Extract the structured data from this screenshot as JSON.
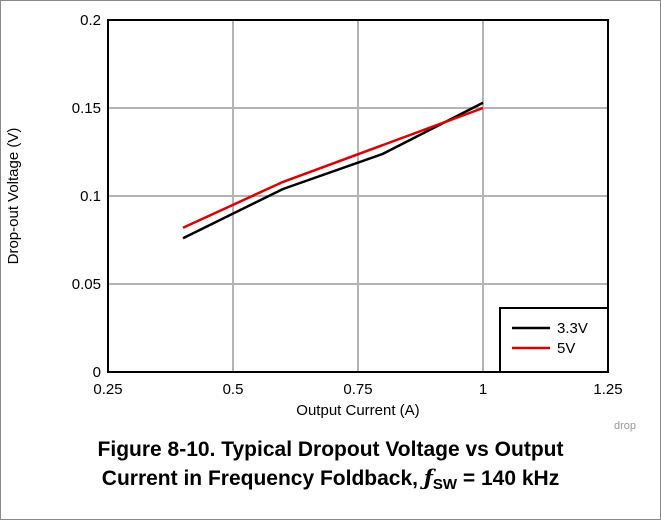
{
  "chart_data": {
    "type": "line",
    "xlabel": "Output Current (A)",
    "ylabel": "Drop-out Voltage (V)",
    "xlim": [
      0.25,
      1.25
    ],
    "ylim": [
      0,
      0.2
    ],
    "xticks": [
      "0.25",
      "0.5",
      "0.75",
      "1",
      "1.25"
    ],
    "yticks": [
      "0",
      "0.05",
      "0.1",
      "0.15",
      "0.2"
    ],
    "grid": true,
    "legend_position": "bottom-right",
    "watermark": "drop",
    "series": [
      {
        "name": "3.3V",
        "color": "#000000",
        "x": [
          0.4,
          0.6,
          0.8,
          1.0
        ],
        "y": [
          0.076,
          0.104,
          0.124,
          0.153
        ]
      },
      {
        "name": "5V",
        "color": "#dd0000",
        "x": [
          0.4,
          0.6,
          0.8,
          1.0
        ],
        "y": [
          0.082,
          0.108,
          0.129,
          0.15
        ]
      }
    ]
  },
  "caption": {
    "line1": "Figure 8-10. Typical Dropout Voltage vs Output",
    "line2_prefix": "Current in Frequency Foldback, ",
    "symbol": "ƒ",
    "subscript": "SW",
    "line2_suffix": " = 140 kHz"
  }
}
